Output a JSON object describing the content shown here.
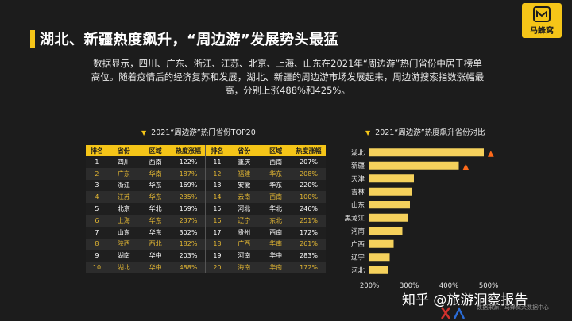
{
  "header": {
    "title": "湖北、新疆热度飙升，“周边游”发展势头最猛",
    "logo_text": "马蜂窝"
  },
  "description": "数据显示，四川、广东、浙江、江苏、北京、上海、山东在2021年“周边游”热门省份中居于榜单高位。随着疫情后的经济复苏和发展，湖北、新疆的周边游市场发展起来，周边游搜索指数涨幅最高，分别上涨488%和425%。",
  "table_section": {
    "title": "2021“周边游”热门省份TOP20",
    "headers": [
      "排名",
      "省份",
      "区域",
      "热度涨幅",
      "排名",
      "省份",
      "区域",
      "热度涨幅"
    ],
    "rows": [
      [
        "1",
        "四川",
        "西南",
        "122%",
        "11",
        "重庆",
        "西南",
        "207%"
      ],
      [
        "2",
        "广东",
        "华南",
        "187%",
        "12",
        "福建",
        "华东",
        "208%"
      ],
      [
        "3",
        "浙江",
        "华东",
        "169%",
        "13",
        "安徽",
        "华东",
        "220%"
      ],
      [
        "4",
        "江苏",
        "华东",
        "235%",
        "14",
        "云南",
        "西南",
        "100%"
      ],
      [
        "5",
        "北京",
        "华北",
        "159%",
        "15",
        "河北",
        "华北",
        "246%"
      ],
      [
        "6",
        "上海",
        "华东",
        "237%",
        "16",
        "辽宁",
        "东北",
        "251%"
      ],
      [
        "7",
        "山东",
        "华东",
        "302%",
        "17",
        "贵州",
        "西南",
        "172%"
      ],
      [
        "8",
        "陕西",
        "西北",
        "182%",
        "18",
        "广西",
        "华南",
        "261%"
      ],
      [
        "9",
        "湖南",
        "华中",
        "203%",
        "19",
        "河南",
        "华中",
        "283%"
      ],
      [
        "10",
        "湖北",
        "华中",
        "488%",
        "20",
        "海南",
        "华南",
        "172%"
      ]
    ]
  },
  "chart_section": {
    "title": "2021“周边游”热度飙升省份对比"
  },
  "chart_data": {
    "type": "bar",
    "orientation": "horizontal",
    "title": "2021“周边游”热度飙升省份对比",
    "categories": [
      "湖北",
      "新疆",
      "天津",
      "吉林",
      "山东",
      "黑龙江",
      "河南",
      "广西",
      "辽宁",
      "河北"
    ],
    "values": [
      488,
      425,
      312,
      307,
      302,
      297,
      283,
      261,
      251,
      246
    ],
    "xlim": [
      200,
      500
    ],
    "xticks": [
      "200%",
      "300%",
      "400%",
      "500%"
    ],
    "highlight_icon": "fire-icon",
    "highlighted": [
      "湖北",
      "新疆"
    ],
    "bar_color": "#f5d15c",
    "grid": false
  },
  "footer": {
    "watermark": "知乎 @旅游洞察报告",
    "source_note": "数据来源：马蜂窝大数据中心"
  },
  "colors": {
    "accent": "#f5c518",
    "background": "#1c1c1c"
  }
}
